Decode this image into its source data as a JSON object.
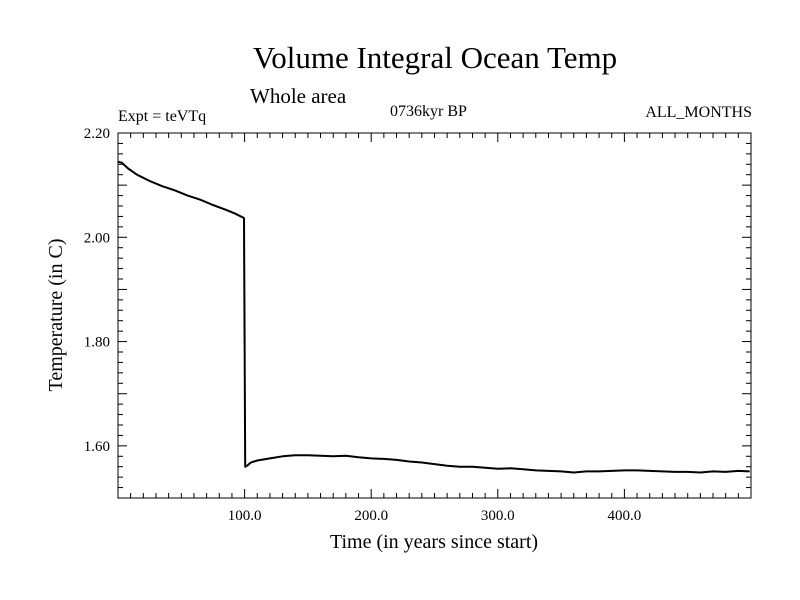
{
  "header": {
    "title": "Volume Integral Ocean Temp",
    "subtitle": "Whole area",
    "expt": "Expt = teVTq",
    "period": "0736kyr BP",
    "months": "ALL_MONTHS"
  },
  "chart_data": {
    "type": "line",
    "title": "Volume Integral Ocean Temp",
    "subtitle": "Whole area",
    "xlabel": "Time (in years since start)",
    "ylabel": "Temperature (in C)",
    "xlim": [
      0,
      500
    ],
    "ylim": [
      1.5,
      2.2
    ],
    "x_ticks": [
      100,
      200,
      300,
      400
    ],
    "x_tick_labels": [
      "100.0",
      "200.0",
      "300.0",
      "400.0"
    ],
    "y_ticks": [
      1.6,
      1.8,
      2.0,
      2.2
    ],
    "y_tick_labels": [
      "1.60",
      "1.80",
      "2.00",
      "2.20"
    ],
    "grid": false,
    "series": [
      {
        "color": "#000000",
        "x": [
          0,
          3,
          8,
          15,
          25,
          35,
          45,
          55,
          65,
          75,
          85,
          92,
          99.5,
          100,
          100.5,
          102,
          105,
          110,
          120,
          130,
          140,
          150,
          160,
          170,
          180,
          190,
          200,
          210,
          220,
          230,
          240,
          250,
          260,
          270,
          280,
          290,
          300,
          310,
          320,
          330,
          340,
          350,
          360,
          370,
          380,
          390,
          400,
          410,
          420,
          430,
          440,
          450,
          460,
          470,
          480,
          490,
          499
        ],
        "y": [
          2.145,
          2.143,
          2.132,
          2.12,
          2.108,
          2.098,
          2.09,
          2.08,
          2.072,
          2.062,
          2.053,
          2.046,
          2.037,
          1.8,
          1.56,
          1.562,
          1.568,
          1.572,
          1.576,
          1.58,
          1.582,
          1.582,
          1.581,
          1.58,
          1.581,
          1.578,
          1.576,
          1.575,
          1.573,
          1.57,
          1.568,
          1.565,
          1.562,
          1.56,
          1.56,
          1.558,
          1.556,
          1.557,
          1.555,
          1.553,
          1.552,
          1.551,
          1.549,
          1.551,
          1.551,
          1.552,
          1.553,
          1.553,
          1.552,
          1.551,
          1.55,
          1.55,
          1.549,
          1.551,
          1.55,
          1.552,
          1.551
        ]
      }
    ]
  }
}
